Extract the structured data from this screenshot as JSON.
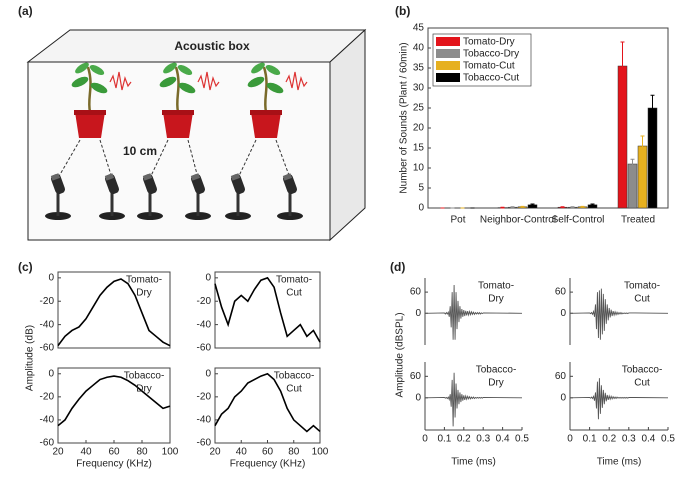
{
  "panel_labels": [
    "(a)",
    "(b)",
    "(c)",
    "(d)"
  ],
  "diagram": {
    "title": "Acoustic box",
    "distance": "10 cm"
  },
  "chart_data": [
    {
      "type": "bar",
      "ylabel": "Number of Sounds (Plant / 60min)",
      "categories": [
        "Pot",
        "Neighbor-Control",
        "Self-Control",
        "Treated"
      ],
      "series": [
        {
          "name": "Tomato-Dry",
          "color": "#e3141b",
          "values": [
            0,
            0.1,
            0.2,
            35.5
          ],
          "errors": [
            0,
            0.1,
            0.1,
            6
          ]
        },
        {
          "name": "Tobacco-Dry",
          "color": "#8c8c8c",
          "values": [
            0,
            0.2,
            0.2,
            11
          ],
          "errors": [
            0,
            0.1,
            0.1,
            1.2
          ]
        },
        {
          "name": "Tomato-Cut",
          "color": "#e6b020",
          "values": [
            0,
            0.3,
            0.3,
            15.5
          ],
          "errors": [
            0,
            0.1,
            0.1,
            2.5
          ]
        },
        {
          "name": "Tobacco-Cut",
          "color": "#000000",
          "values": [
            0,
            0.8,
            0.8,
            25
          ],
          "errors": [
            0,
            0.2,
            0.2,
            3.2
          ]
        }
      ],
      "ylim": [
        0,
        45
      ],
      "yticks": [
        0,
        5,
        10,
        15,
        20,
        25,
        30,
        35,
        40,
        45
      ],
      "legend": "top-left"
    },
    {
      "type": "line-grid",
      "ylabel": "Amplitude (dB)",
      "xlabel": "Frequency (KHz)",
      "box": true,
      "color": "#000000",
      "subplots": [
        {
          "annotation": [
            "Tomato-",
            "Dry"
          ],
          "x": [
            20,
            25,
            30,
            35,
            40,
            45,
            50,
            55,
            60,
            65,
            70,
            75,
            80,
            85,
            90,
            95,
            100
          ],
          "values": [
            -58,
            -50,
            -45,
            -42,
            -35,
            -25,
            -15,
            -8,
            -3,
            -1,
            -5,
            -15,
            -30,
            -45,
            -50,
            -55,
            -58
          ],
          "xlim": [
            20,
            100
          ],
          "ylim": [
            -60,
            5
          ],
          "yticks": [
            -60,
            -40,
            -20,
            0
          ]
        },
        {
          "annotation": [
            "Tomato-",
            "Cut"
          ],
          "x": [
            20,
            25,
            30,
            35,
            40,
            45,
            50,
            55,
            60,
            65,
            70,
            75,
            80,
            85,
            90,
            95,
            100
          ],
          "values": [
            -5,
            -25,
            -40,
            -20,
            -15,
            -20,
            -10,
            -2,
            0,
            -8,
            -30,
            -50,
            -45,
            -40,
            -50,
            -45,
            -55
          ],
          "xlim": [
            20,
            100
          ],
          "ylim": [
            -60,
            5
          ],
          "yticks": [
            -60,
            -40,
            -20,
            0
          ]
        },
        {
          "annotation": [
            "Tobacco-",
            "Dry"
          ],
          "x": [
            20,
            25,
            30,
            35,
            40,
            45,
            50,
            55,
            60,
            65,
            70,
            75,
            80,
            85,
            90,
            95,
            100
          ],
          "values": [
            -45,
            -40,
            -30,
            -22,
            -15,
            -10,
            -5,
            -3,
            -2,
            -3,
            -6,
            -10,
            -15,
            -20,
            -25,
            -30,
            -28
          ],
          "xlim": [
            20,
            100
          ],
          "ylim": [
            -60,
            5
          ],
          "yticks": [
            -60,
            -40,
            -20,
            0
          ],
          "xticks": [
            20,
            40,
            60,
            80,
            100
          ]
        },
        {
          "annotation": [
            "Tobacco-",
            "Cut"
          ],
          "x": [
            20,
            25,
            30,
            35,
            40,
            45,
            50,
            55,
            60,
            65,
            70,
            75,
            80,
            85,
            90,
            95,
            100
          ],
          "values": [
            -45,
            -35,
            -30,
            -20,
            -15,
            -8,
            -5,
            -2,
            0,
            -5,
            -15,
            -30,
            -40,
            -45,
            -50,
            -45,
            -50
          ],
          "xlim": [
            20,
            100
          ],
          "ylim": [
            -60,
            5
          ],
          "yticks": [
            -60,
            -40,
            -20,
            0
          ],
          "xticks": [
            20,
            40,
            60,
            80,
            100
          ]
        }
      ]
    },
    {
      "type": "line-grid",
      "ylabel": "Amplitude (dBSPL)",
      "xlabel": "Time (ms)",
      "box": false,
      "color": "#555555",
      "subplots": [
        {
          "annotation": [
            "Tomato-",
            "Dry"
          ],
          "x": [
            0,
            0.1,
            0.105,
            0.11,
            0.115,
            0.12,
            0.125,
            0.13,
            0.135,
            0.14,
            0.145,
            0.15,
            0.155,
            0.16,
            0.165,
            0.17,
            0.175,
            0.18,
            0.185,
            0.19,
            0.195,
            0.2,
            0.205,
            0.21,
            0.215,
            0.22,
            0.225,
            0.23,
            0.235,
            0.24,
            0.245,
            0.25,
            0.255,
            0.26,
            0.265,
            0.27,
            0.275,
            0.28,
            0.285,
            0.29,
            0.295,
            0.3,
            0.5
          ],
          "values": [
            0,
            1,
            -2,
            2,
            -2,
            3,
            -10,
            20,
            -40,
            60,
            -75,
            80,
            -75,
            60,
            -45,
            35,
            -25,
            20,
            -15,
            12,
            -10,
            9,
            -8,
            7,
            -6,
            6,
            -5,
            5,
            -4,
            4,
            -3,
            3,
            -3,
            2,
            -2,
            2,
            -2,
            2,
            -2,
            1,
            -1,
            1,
            0
          ],
          "xlim": [
            0,
            0.5
          ],
          "ylim": [
            -90,
            100
          ],
          "yticks": [
            0,
            60
          ]
        },
        {
          "annotation": [
            "Tomato-",
            "Cut"
          ],
          "x": [
            0,
            0.1,
            0.105,
            0.11,
            0.115,
            0.12,
            0.125,
            0.13,
            0.135,
            0.14,
            0.145,
            0.15,
            0.155,
            0.16,
            0.165,
            0.17,
            0.175,
            0.18,
            0.185,
            0.19,
            0.195,
            0.2,
            0.205,
            0.21,
            0.215,
            0.22,
            0.225,
            0.23,
            0.235,
            0.24,
            0.245,
            0.25,
            0.255,
            0.26,
            0.265,
            0.27,
            0.275,
            0.28,
            0.285,
            0.29,
            0.295,
            0.3,
            0.5
          ],
          "values": [
            0,
            1,
            -1,
            2,
            -3,
            5,
            -10,
            25,
            -45,
            60,
            -70,
            65,
            -75,
            70,
            -60,
            55,
            -50,
            40,
            -30,
            25,
            -20,
            15,
            -12,
            10,
            -8,
            6,
            -5,
            4,
            -4,
            3,
            -3,
            2,
            -2,
            2,
            -2,
            1,
            -1,
            1,
            -1,
            1,
            -1,
            1,
            0
          ],
          "xlim": [
            0,
            0.5
          ],
          "ylim": [
            -90,
            100
          ],
          "yticks": [
            0,
            60
          ]
        },
        {
          "annotation": [
            "Tobacco-",
            "Dry"
          ],
          "x": [
            0,
            0.1,
            0.105,
            0.11,
            0.115,
            0.12,
            0.125,
            0.13,
            0.135,
            0.14,
            0.145,
            0.15,
            0.155,
            0.16,
            0.165,
            0.17,
            0.175,
            0.18,
            0.185,
            0.19,
            0.195,
            0.2,
            0.205,
            0.21,
            0.215,
            0.22,
            0.225,
            0.23,
            0.235,
            0.24,
            0.245,
            0.25,
            0.255,
            0.26,
            0.265,
            0.27,
            0.275,
            0.28,
            0.285,
            0.29,
            0.295,
            0.3,
            0.5
          ],
          "values": [
            0,
            1,
            -1,
            1,
            -2,
            2,
            -5,
            10,
            -25,
            50,
            -80,
            70,
            -55,
            40,
            -30,
            22,
            -18,
            15,
            -12,
            10,
            -8,
            7,
            -6,
            5,
            -4,
            4,
            -3,
            3,
            -3,
            2,
            -2,
            2,
            -2,
            1,
            -1,
            1,
            -1,
            1,
            -1,
            1,
            -1,
            1,
            0
          ],
          "xlim": [
            0,
            0.5
          ],
          "ylim": [
            -90,
            100
          ],
          "yticks": [
            0,
            60
          ],
          "xticks": [
            0,
            0.1,
            0.2,
            0.3,
            0.4,
            0.5
          ]
        },
        {
          "annotation": [
            "Tobacco-",
            "Cut"
          ],
          "x": [
            0,
            0.1,
            0.105,
            0.11,
            0.115,
            0.12,
            0.125,
            0.13,
            0.135,
            0.14,
            0.145,
            0.15,
            0.155,
            0.16,
            0.165,
            0.17,
            0.175,
            0.18,
            0.185,
            0.19,
            0.195,
            0.2,
            0.205,
            0.21,
            0.215,
            0.22,
            0.225,
            0.23,
            0.235,
            0.24,
            0.245,
            0.25,
            0.255,
            0.26,
            0.265,
            0.27,
            0.275,
            0.28,
            0.285,
            0.29,
            0.295,
            0.3,
            0.5
          ],
          "values": [
            0,
            1,
            -1,
            2,
            -2,
            4,
            -8,
            15,
            -30,
            45,
            -60,
            55,
            -45,
            35,
            -28,
            22,
            -18,
            14,
            -10,
            8,
            -6,
            5,
            -4,
            4,
            -3,
            3,
            -2,
            2,
            -2,
            2,
            -1,
            1,
            -1,
            1,
            -1,
            1,
            -1,
            1,
            -1,
            1,
            -1,
            1,
            0
          ],
          "xlim": [
            0,
            0.5
          ],
          "ylim": [
            -90,
            100
          ],
          "yticks": [
            0,
            60
          ],
          "xticks": [
            0,
            0.1,
            0.2,
            0.3,
            0.4,
            0.5
          ]
        }
      ]
    }
  ]
}
